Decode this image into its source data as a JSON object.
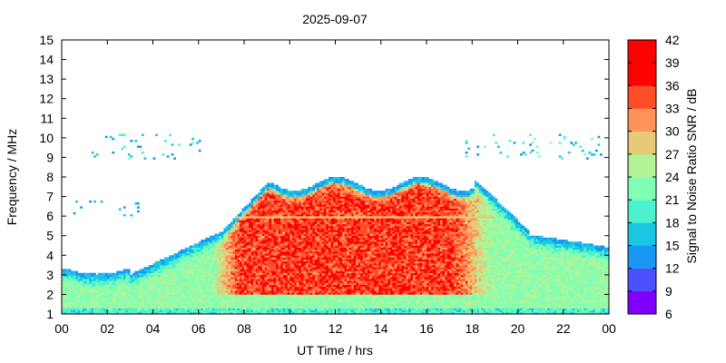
{
  "chart_data": {
    "type": "heatmap",
    "title": "2025-09-07",
    "xlabel": "UT Time / hrs",
    "ylabel": "Frequency / MHz",
    "colorbar_label": "Signal to Noise Ratio SNR / dB",
    "xlim": [
      0,
      24
    ],
    "ylim": [
      1,
      15
    ],
    "x_ticks": [
      "00",
      "02",
      "04",
      "06",
      "08",
      "10",
      "12",
      "14",
      "16",
      "18",
      "20",
      "22",
      "00"
    ],
    "y_ticks": [
      "1",
      "2",
      "3",
      "4",
      "5",
      "6",
      "7",
      "8",
      "9",
      "10",
      "11",
      "12",
      "13",
      "14",
      "15"
    ],
    "colorbar_range": [
      6,
      42
    ],
    "colorbar_ticks": [
      "6",
      "9",
      "12",
      "15",
      "18",
      "21",
      "24",
      "27",
      "30",
      "33",
      "36",
      "39",
      "42"
    ],
    "colorbar_colors": [
      "#8000ff",
      "#4c50fc",
      "#1996f3",
      "#1ac7e2",
      "#4cf2ce",
      "#80feb3",
      "#b3f396",
      "#e6ca78",
      "#ff9259",
      "#ff4d2a",
      "#ff0000",
      "#ff0000"
    ],
    "grid": false,
    "regions": [
      {
        "description": "strong echoes (SNR 36-42 dB)",
        "t_start": 7,
        "t_end": 18,
        "f_min": 2,
        "f_max": 8
      },
      {
        "description": "moderate echoes (SNR 15-27 dB)",
        "t_start": 0,
        "t_end": 24,
        "f_min": 1,
        "f_max": 4.5
      }
    ]
  }
}
